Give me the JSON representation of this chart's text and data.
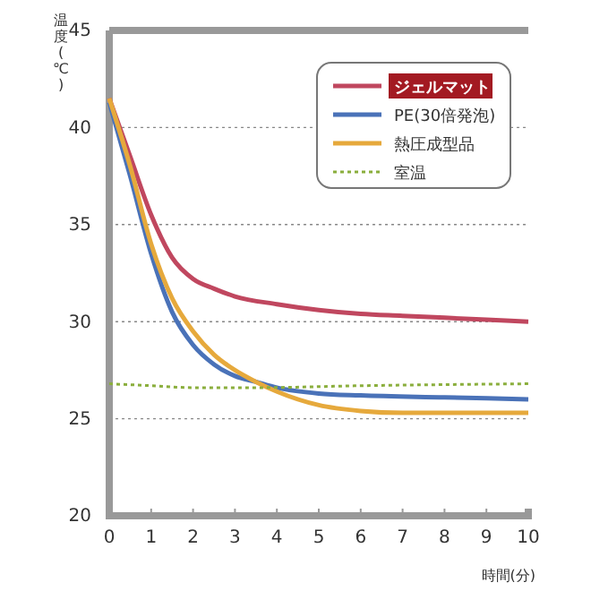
{
  "chart_data": {
    "type": "line",
    "xlabel": "時間(分)",
    "ylabel": "温度(℃)",
    "xlim": [
      0,
      10
    ],
    "xticks": [
      0,
      1,
      2,
      3,
      4,
      5,
      6,
      7,
      8,
      9,
      10
    ],
    "ylim": [
      20,
      45
    ],
    "yticks": [
      20,
      25,
      30,
      35,
      40,
      45
    ],
    "grid": "y",
    "legend": "top right",
    "line_style": "solid",
    "series": [
      {
        "name": "ジェルマット",
        "color": "#c0475f",
        "x": [
          0,
          0.5,
          1,
          1.5,
          2,
          2.5,
          3,
          4,
          5,
          6,
          7,
          8,
          9,
          10
        ],
        "values": [
          41.5,
          38.5,
          35.5,
          33.3,
          32.2,
          31.7,
          31.3,
          30.9,
          30.6,
          30.4,
          30.3,
          30.2,
          30.1,
          30.0
        ]
      },
      {
        "name": "PE(30倍発泡)",
        "color": "#4a72b8",
        "x": [
          0,
          0.5,
          1,
          1.5,
          2,
          2.5,
          3,
          3.5,
          4,
          5,
          6,
          8,
          10
        ],
        "values": [
          41.3,
          37.5,
          33.5,
          30.5,
          28.8,
          27.8,
          27.2,
          26.9,
          26.6,
          26.3,
          26.2,
          26.1,
          26.0
        ]
      },
      {
        "name": "熱圧成型品",
        "color": "#e6a93c",
        "x": [
          0,
          0.5,
          1,
          1.5,
          2,
          2.5,
          3,
          3.5,
          4,
          5,
          6,
          7,
          10
        ],
        "values": [
          41.5,
          38.0,
          34.0,
          31.2,
          29.5,
          28.3,
          27.5,
          26.9,
          26.4,
          25.7,
          25.4,
          25.3,
          25.3
        ]
      },
      {
        "name": "室温",
        "color": "#8aae3c",
        "line_style": "dotted",
        "x": [
          0,
          1,
          2,
          3.5,
          6,
          10
        ],
        "values": [
          26.8,
          26.7,
          26.6,
          26.6,
          26.7,
          26.8
        ]
      }
    ]
  }
}
